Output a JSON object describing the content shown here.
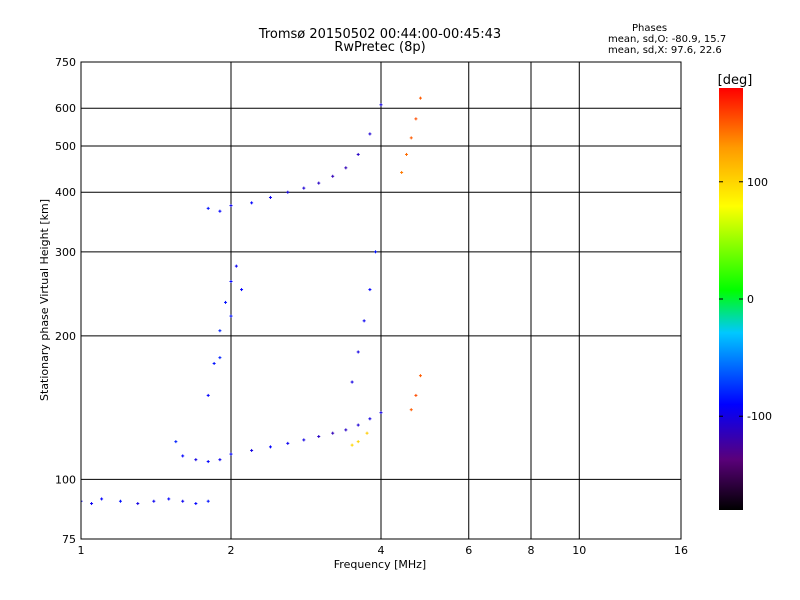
{
  "title_line1": "Tromsø 20150502 00:44:00-00:45:43",
  "title_line2": "RwPretec (8p)",
  "stats": {
    "heading": "Phases",
    "line1": "mean, sd,O: -80.9, 15.7",
    "line2": "mean, sd,X:  97.6, 22.6"
  },
  "colorbar": {
    "label": "[deg]",
    "ticks": [
      {
        "value": 100,
        "label": "100"
      },
      {
        "value": 0,
        "label": "0"
      },
      {
        "value": -100,
        "label": "-100"
      }
    ],
    "range": [
      -180,
      180
    ]
  },
  "chart_data": {
    "type": "scatter",
    "title": "Tromsø 20150502 00:44:00-00:45:43",
    "subtitle": "RwPretec (8p)",
    "xlabel": "Frequency [MHz]",
    "ylabel": "Stationary phase Virtual Height [km]",
    "x_scale": "log",
    "y_scale": "log",
    "xlim": [
      1,
      16
    ],
    "ylim": [
      75,
      750
    ],
    "xticks": [
      {
        "value": 1,
        "label": "1"
      },
      {
        "value": 2,
        "label": "2"
      },
      {
        "value": 4,
        "label": "4"
      },
      {
        "value": 6,
        "label": "6"
      },
      {
        "value": 8,
        "label": "8"
      },
      {
        "value": 10,
        "label": "10"
      },
      {
        "value": 16,
        "label": "16"
      }
    ],
    "yticks": [
      {
        "value": 75,
        "label": "75"
      },
      {
        "value": 100,
        "label": "100"
      },
      {
        "value": 200,
        "label": "200"
      },
      {
        "value": 300,
        "label": "300"
      },
      {
        "value": 400,
        "label": "400"
      },
      {
        "value": 500,
        "label": "500"
      },
      {
        "value": 600,
        "label": "600"
      },
      {
        "value": 750,
        "label": "750"
      }
    ],
    "grid": true,
    "color_encoding": "phase in degrees",
    "series": [
      {
        "points": [
          [
            1.0,
            90,
            -90
          ],
          [
            1.05,
            89,
            -95
          ],
          [
            1.1,
            91,
            -90
          ],
          [
            1.2,
            90,
            -85
          ],
          [
            1.3,
            89,
            -100
          ],
          [
            1.4,
            90,
            -95
          ],
          [
            1.5,
            91,
            -90
          ],
          [
            1.6,
            90,
            -95
          ],
          [
            1.7,
            89,
            -90
          ],
          [
            1.8,
            90,
            -85
          ]
        ]
      },
      {
        "points": [
          [
            1.55,
            120,
            -80
          ],
          [
            1.6,
            112,
            -90
          ],
          [
            1.7,
            110,
            -100
          ],
          [
            1.8,
            109,
            -90
          ],
          [
            1.9,
            110,
            -95
          ],
          [
            2.0,
            113,
            -90
          ],
          [
            2.2,
            115,
            -100
          ],
          [
            2.4,
            117,
            -90
          ],
          [
            2.6,
            119,
            -95
          ],
          [
            2.8,
            121,
            -100
          ],
          [
            3.0,
            123,
            -110
          ],
          [
            3.2,
            125,
            -115
          ],
          [
            3.4,
            127,
            -110
          ],
          [
            3.6,
            130,
            -105
          ],
          [
            3.8,
            134,
            -100
          ],
          [
            4.0,
            138,
            -100
          ]
        ]
      },
      {
        "points": [
          [
            1.8,
            150,
            -90
          ],
          [
            1.85,
            175,
            -85
          ],
          [
            1.9,
            205,
            -80
          ],
          [
            1.95,
            235,
            -85
          ],
          [
            2.0,
            260,
            -90
          ],
          [
            2.05,
            280,
            -95
          ],
          [
            2.1,
            250,
            -90
          ],
          [
            2.0,
            220,
            -85
          ],
          [
            1.9,
            180,
            -80
          ]
        ]
      },
      {
        "points": [
          [
            1.8,
            370,
            -85
          ],
          [
            1.9,
            365,
            -90
          ],
          [
            2.0,
            375,
            -95
          ],
          [
            2.2,
            380,
            -90
          ],
          [
            2.4,
            390,
            -95
          ],
          [
            2.6,
            400,
            -100
          ],
          [
            2.8,
            408,
            -105
          ],
          [
            3.0,
            418,
            -110
          ],
          [
            3.2,
            432,
            -115
          ],
          [
            3.4,
            450,
            -115
          ],
          [
            3.6,
            480,
            -110
          ],
          [
            3.8,
            530,
            -105
          ],
          [
            4.0,
            610,
            -100
          ]
        ]
      },
      {
        "points": [
          [
            3.5,
            118,
            100
          ],
          [
            3.6,
            120,
            100
          ],
          [
            3.75,
            125,
            105
          ],
          [
            3.5,
            160,
            -100
          ],
          [
            3.6,
            185,
            -100
          ],
          [
            3.7,
            215,
            -95
          ],
          [
            3.8,
            250,
            -90
          ],
          [
            3.9,
            300,
            -85
          ]
        ]
      },
      {
        "points": [
          [
            4.6,
            140,
            150
          ],
          [
            4.7,
            150,
            155
          ],
          [
            4.8,
            165,
            150
          ],
          [
            4.4,
            440,
            140
          ],
          [
            4.5,
            480,
            145
          ],
          [
            4.6,
            520,
            150
          ],
          [
            4.7,
            570,
            155
          ],
          [
            4.8,
            630,
            150
          ]
        ]
      }
    ]
  }
}
